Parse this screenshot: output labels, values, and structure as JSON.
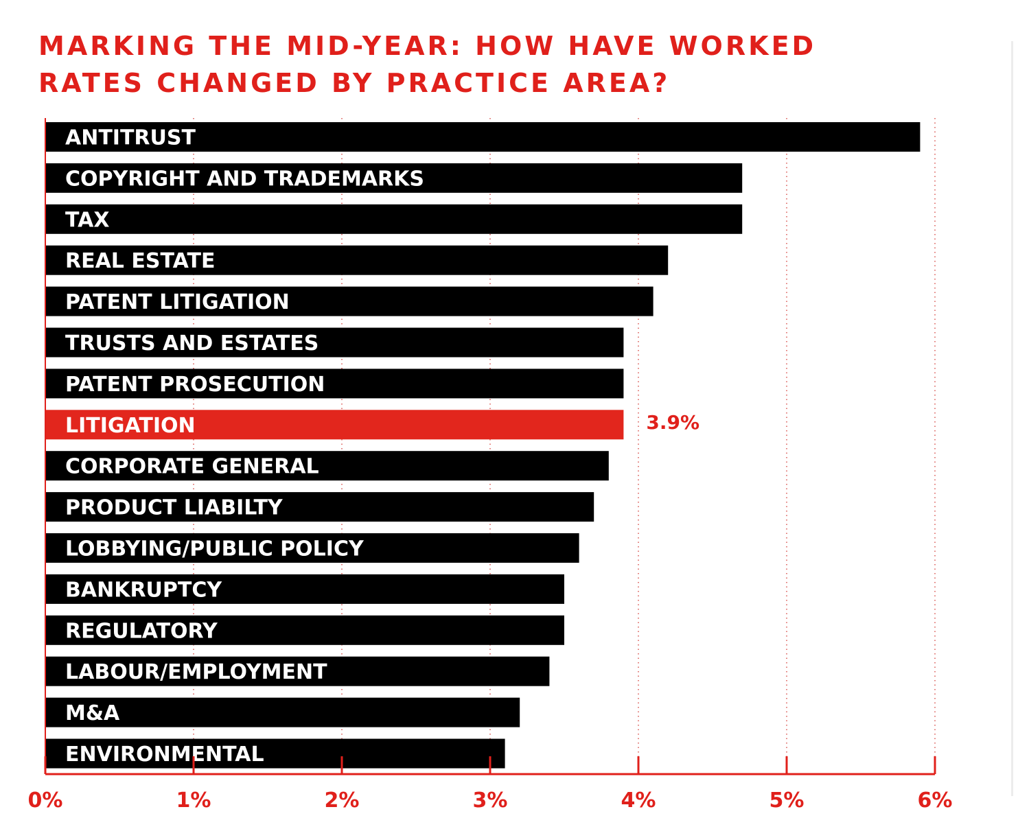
{
  "colors": {
    "accent": "#e0201b",
    "bar": "#000000",
    "highlight_bar": "#e2261d",
    "label_text": "#ffffff",
    "grid": "#d9534f"
  },
  "chart_data": {
    "type": "bar",
    "orientation": "horizontal",
    "title_lines": [
      "MARKING THE MID-YEAR: HOW HAVE WORKED",
      "RATES CHANGED BY PRACTICE AREA?"
    ],
    "categories": [
      "ANTITRUST",
      "COPYRIGHT AND TRADEMARKS",
      "TAX",
      "REAL ESTATE",
      "PATENT LITIGATION",
      "TRUSTS AND ESTATES",
      "PATENT PROSECUTION",
      "LITIGATION",
      "CORPORATE GENERAL",
      "PRODUCT LIABILTY",
      "LOBBYING/PUBLIC POLICY",
      "BANKRUPTCY",
      "REGULATORY",
      "LABOUR/EMPLOYMENT",
      "M&A",
      "ENVIRONMENTAL"
    ],
    "values": [
      5.9,
      4.7,
      4.7,
      4.2,
      4.1,
      3.9,
      3.9,
      3.9,
      3.8,
      3.7,
      3.6,
      3.5,
      3.5,
      3.4,
      3.2,
      3.1
    ],
    "highlight_index": 7,
    "data_labels": [
      {
        "category": "LITIGATION",
        "text": "3.9%"
      }
    ],
    "xlim": [
      0,
      6
    ],
    "x_ticks": [
      "0%",
      "1%",
      "2%",
      "3%",
      "4%",
      "5%",
      "6%"
    ],
    "grid": "vertical dotted",
    "xlabel": "",
    "ylabel": ""
  }
}
